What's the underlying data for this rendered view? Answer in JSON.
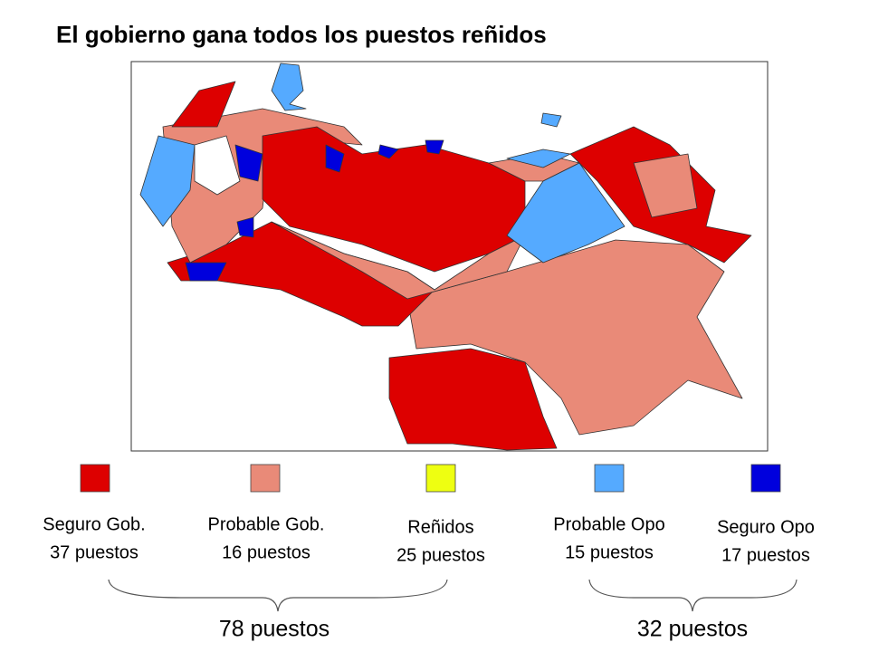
{
  "title": "El gobierno gana todos los puestos reñidos",
  "legend": [
    {
      "label": "Seguro Gob.",
      "count": "37 puestos",
      "color": "#dd0000"
    },
    {
      "label": "Probable Gob.",
      "count": "16 puestos",
      "color": "#e98a78"
    },
    {
      "label": "Reñidos",
      "count": "25 puestos",
      "color": "#eeff11"
    },
    {
      "label": "Probable Opo",
      "count": "15 puestos",
      "color": "#55aaff"
    },
    {
      "label": "Seguro Opo",
      "count": "17 puestos",
      "color": "#0000dd"
    }
  ],
  "totals": [
    {
      "label": "78 puestos"
    },
    {
      "label": "32 puestos"
    }
  ]
}
